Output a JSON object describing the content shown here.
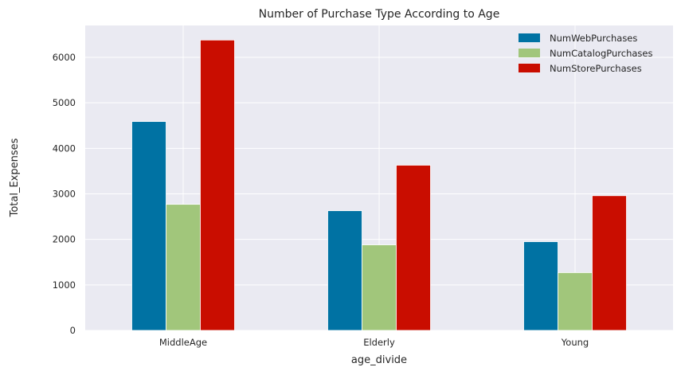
{
  "chart_data": {
    "type": "bar",
    "title": "Number of Purchase Type According to Age",
    "xlabel": "age_divide",
    "ylabel": "Total_Expenses",
    "categories": [
      "MiddleAge",
      "Elderly",
      "Young"
    ],
    "series": [
      {
        "name": "NumWebPurchases",
        "color": "#0072a3",
        "values": [
          4590,
          2630,
          1950
        ]
      },
      {
        "name": "NumCatalogPurchases",
        "color": "#a1c67b",
        "values": [
          2770,
          1880,
          1270
        ]
      },
      {
        "name": "NumStorePurchases",
        "color": "#c90d00",
        "values": [
          6380,
          3630,
          2960
        ]
      }
    ],
    "ylim": [
      0,
      6700
    ],
    "yticks": [
      0,
      1000,
      2000,
      3000,
      4000,
      5000,
      6000
    ],
    "grid": true,
    "legend_position": "top-right",
    "background": "#eaeaf2"
  }
}
